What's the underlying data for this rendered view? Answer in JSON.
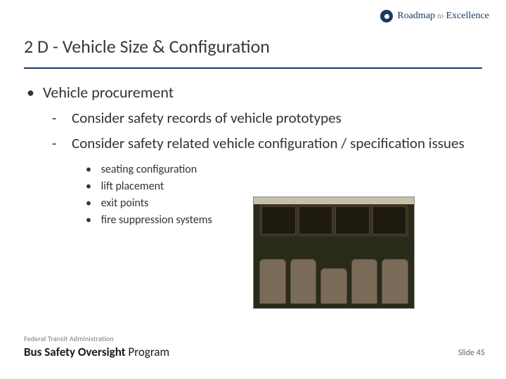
{
  "header": {
    "roadmap_left": "Roadmap",
    "roadmap_mid": "to",
    "roadmap_right": "Excellence"
  },
  "title": "2 D - Vehicle Size & Configuration",
  "content": {
    "lvl1": "Vehicle procurement",
    "lvl2": [
      "Consider safety records of vehicle prototypes",
      "Consider safety related vehicle configuration / specification issues"
    ],
    "lvl3": [
      "seating configuration",
      "lift placement",
      "exit points",
      "fire suppression systems"
    ]
  },
  "footer": {
    "fta": "Federal Transit Administration",
    "program_bold": "Bus Safety Oversight",
    "program_thin": "Program",
    "slidenum": "Slide 45"
  },
  "colors": {
    "rule": "#1a3a5c",
    "text": "#333333",
    "background": "#ffffff"
  }
}
